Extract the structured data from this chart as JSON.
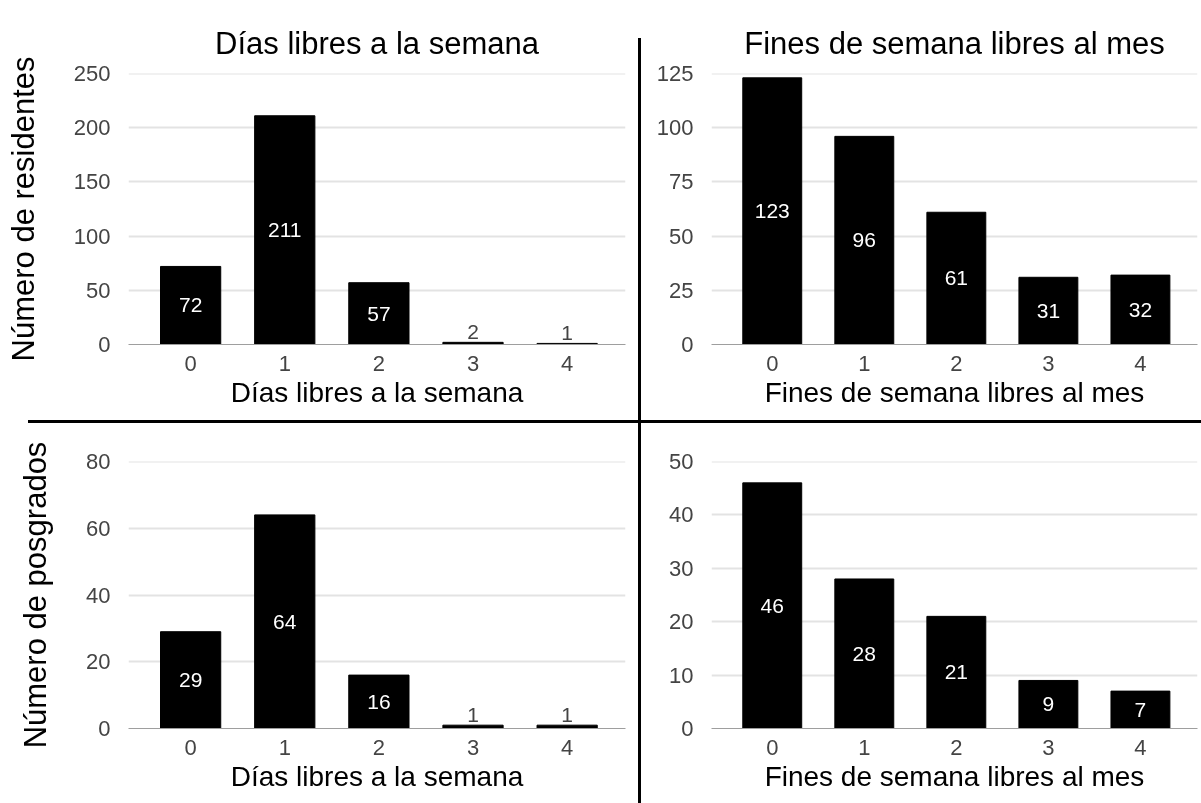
{
  "chart_data": [
    {
      "type": "bar",
      "title": "Días libres a la semana",
      "xlabel": "Días libres a la semana",
      "ylabel": "Número de residentes",
      "categories": [
        "0",
        "1",
        "2",
        "3",
        "4"
      ],
      "values": [
        72,
        211,
        57,
        2,
        1
      ],
      "color": "#000000",
      "ylim": [
        0,
        250
      ],
      "yticks": [
        0,
        50,
        100,
        150,
        200,
        250
      ],
      "grid": "y",
      "data_labels": true
    },
    {
      "type": "bar",
      "title": "Fines de semana libres al mes",
      "xlabel": "Fines de semana libres al mes",
      "categories": [
        "0",
        "1",
        "2",
        "3",
        "4"
      ],
      "values": [
        123,
        96,
        61,
        31,
        32
      ],
      "color": "#000000",
      "ylim": [
        0,
        125
      ],
      "yticks": [
        0,
        25,
        50,
        75,
        100,
        125
      ],
      "grid": "y",
      "data_labels": true
    },
    {
      "type": "bar",
      "xlabel": "Días libres a la semana",
      "ylabel": "Número de posgrados",
      "categories": [
        "0",
        "1",
        "2",
        "3",
        "4"
      ],
      "values": [
        29,
        64,
        16,
        1,
        1
      ],
      "color": "#000000",
      "ylim": [
        0,
        80
      ],
      "yticks": [
        0,
        20,
        40,
        60,
        80
      ],
      "grid": "y",
      "data_labels": true
    },
    {
      "type": "bar",
      "xlabel": "Fines de semana libres al mes",
      "categories": [
        "0",
        "1",
        "2",
        "3",
        "4"
      ],
      "values": [
        46,
        28,
        21,
        9,
        7
      ],
      "color": "#000000",
      "ylim": [
        0,
        50
      ],
      "yticks": [
        0,
        10,
        20,
        30,
        40,
        50
      ],
      "grid": "y",
      "data_labels": true
    }
  ]
}
